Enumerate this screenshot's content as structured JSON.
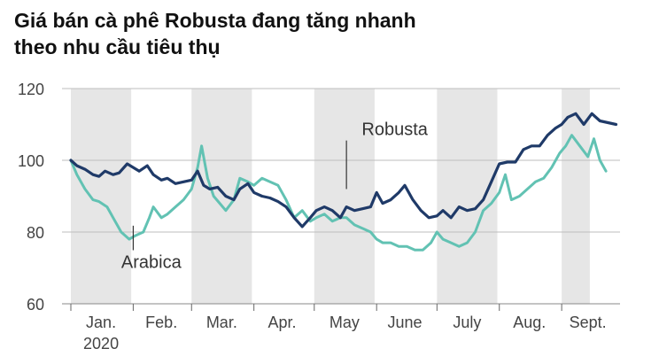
{
  "chart_data": {
    "type": "line",
    "title_lines": [
      "Giá bán cà phê Robusta đang tăng nhanh",
      "theo nhu cầu tiêu thụ"
    ],
    "xlabel": "",
    "ylabel": "",
    "ylim": [
      60,
      120
    ],
    "yticks": [
      60,
      80,
      100,
      120
    ],
    "x_start": "2020-01-01",
    "x_end": "2020-09-30",
    "month_labels": [
      "Jan.",
      "Feb.",
      "Mar.",
      "Apr.",
      "May",
      "June",
      "July",
      "Aug.",
      "Sept."
    ],
    "month_starts": [
      "2020-01-01",
      "2020-02-01",
      "2020-03-01",
      "2020-04-01",
      "2020-05-01",
      "2020-06-01",
      "2020-07-01",
      "2020-08-01",
      "2020-09-01"
    ],
    "month_label_centers": [
      "2020-01-16",
      "2020-02-15",
      "2020-03-16",
      "2020-04-15",
      "2020-05-16",
      "2020-06-15",
      "2020-07-16",
      "2020-08-16",
      "2020-09-14"
    ],
    "year_label": "2020",
    "grid": "y",
    "legend": "inline labels",
    "shaded_bands": [
      [
        "2020-01-01",
        "2020-01-31"
      ],
      [
        "2020-03-01",
        "2020-03-31"
      ],
      [
        "2020-05-01",
        "2020-05-31"
      ],
      [
        "2020-07-01",
        "2020-07-31"
      ],
      [
        "2020-09-01",
        "2020-09-15"
      ]
    ],
    "band_color": "#e6e6e6",
    "series": [
      {
        "name": "Robusta",
        "color": "#1f3a68",
        "label_text": "Robusta",
        "label_anchor": [
          "2020-05-17",
          91
        ],
        "label_pos": [
          "2020-06-10",
          107
        ],
        "points": [
          [
            "2020-01-01",
            100
          ],
          [
            "2020-01-04",
            98.5
          ],
          [
            "2020-01-08",
            97.5
          ],
          [
            "2020-01-12",
            96
          ],
          [
            "2020-01-15",
            95.5
          ],
          [
            "2020-01-18",
            97
          ],
          [
            "2020-01-22",
            96
          ],
          [
            "2020-01-25",
            96.5
          ],
          [
            "2020-01-29",
            99
          ],
          [
            "2020-02-01",
            98
          ],
          [
            "2020-02-04",
            97
          ],
          [
            "2020-02-08",
            98.5
          ],
          [
            "2020-02-11",
            96
          ],
          [
            "2020-02-15",
            94.5
          ],
          [
            "2020-02-18",
            95
          ],
          [
            "2020-02-22",
            93.5
          ],
          [
            "2020-02-26",
            94
          ],
          [
            "2020-03-01",
            94.5
          ],
          [
            "2020-03-04",
            97
          ],
          [
            "2020-03-07",
            93
          ],
          [
            "2020-03-10",
            92
          ],
          [
            "2020-03-14",
            92.5
          ],
          [
            "2020-03-18",
            90
          ],
          [
            "2020-03-22",
            89
          ],
          [
            "2020-03-25",
            92
          ],
          [
            "2020-03-29",
            93.5
          ],
          [
            "2020-04-01",
            91
          ],
          [
            "2020-04-05",
            90
          ],
          [
            "2020-04-09",
            89.5
          ],
          [
            "2020-04-13",
            88.5
          ],
          [
            "2020-04-17",
            87
          ],
          [
            "2020-04-21",
            84
          ],
          [
            "2020-04-25",
            81.5
          ],
          [
            "2020-04-29",
            84
          ],
          [
            "2020-05-02",
            86
          ],
          [
            "2020-05-06",
            87
          ],
          [
            "2020-05-10",
            86
          ],
          [
            "2020-05-14",
            84
          ],
          [
            "2020-05-17",
            87
          ],
          [
            "2020-05-21",
            86
          ],
          [
            "2020-05-25",
            86.5
          ],
          [
            "2020-05-29",
            87
          ],
          [
            "2020-06-01",
            91
          ],
          [
            "2020-06-04",
            88
          ],
          [
            "2020-06-08",
            89
          ],
          [
            "2020-06-12",
            91
          ],
          [
            "2020-06-15",
            93
          ],
          [
            "2020-06-19",
            89
          ],
          [
            "2020-06-23",
            86
          ],
          [
            "2020-06-27",
            84
          ],
          [
            "2020-07-01",
            84.5
          ],
          [
            "2020-07-04",
            86
          ],
          [
            "2020-07-08",
            84
          ],
          [
            "2020-07-12",
            87
          ],
          [
            "2020-07-16",
            86
          ],
          [
            "2020-07-20",
            86.5
          ],
          [
            "2020-07-24",
            89
          ],
          [
            "2020-07-28",
            94
          ],
          [
            "2020-08-01",
            99
          ],
          [
            "2020-08-05",
            99.5
          ],
          [
            "2020-08-09",
            99.5
          ],
          [
            "2020-08-13",
            103
          ],
          [
            "2020-08-17",
            104
          ],
          [
            "2020-08-21",
            104
          ],
          [
            "2020-08-25",
            107
          ],
          [
            "2020-08-29",
            109
          ],
          [
            "2020-09-01",
            110
          ],
          [
            "2020-09-04",
            112
          ],
          [
            "2020-09-08",
            113
          ],
          [
            "2020-09-12",
            110
          ],
          [
            "2020-09-16",
            113
          ],
          [
            "2020-09-20",
            111
          ],
          [
            "2020-09-24",
            110.5
          ],
          [
            "2020-09-28",
            110
          ]
        ]
      },
      {
        "name": "Arabica",
        "color": "#62c2b3",
        "label_text": "Arabica",
        "label_anchor": [
          "2020-02-01",
          83
        ],
        "label_pos": [
          "2020-02-10",
          70
        ],
        "points": [
          [
            "2020-01-01",
            100
          ],
          [
            "2020-01-04",
            96
          ],
          [
            "2020-01-08",
            92
          ],
          [
            "2020-01-12",
            89
          ],
          [
            "2020-01-15",
            88.5
          ],
          [
            "2020-01-19",
            87
          ],
          [
            "2020-01-22",
            84
          ],
          [
            "2020-01-26",
            80
          ],
          [
            "2020-01-30",
            78
          ],
          [
            "2020-02-02",
            79
          ],
          [
            "2020-02-06",
            80
          ],
          [
            "2020-02-09",
            84
          ],
          [
            "2020-02-11",
            87
          ],
          [
            "2020-02-15",
            84
          ],
          [
            "2020-02-18",
            85
          ],
          [
            "2020-02-22",
            87
          ],
          [
            "2020-02-26",
            89
          ],
          [
            "2020-03-01",
            92
          ],
          [
            "2020-03-04",
            98
          ],
          [
            "2020-03-06",
            104
          ],
          [
            "2020-03-09",
            95
          ],
          [
            "2020-03-12",
            90
          ],
          [
            "2020-03-15",
            88
          ],
          [
            "2020-03-18",
            86
          ],
          [
            "2020-03-22",
            89
          ],
          [
            "2020-03-25",
            95
          ],
          [
            "2020-03-29",
            94
          ],
          [
            "2020-04-01",
            93
          ],
          [
            "2020-04-05",
            95
          ],
          [
            "2020-04-09",
            94
          ],
          [
            "2020-04-13",
            93
          ],
          [
            "2020-04-17",
            89
          ],
          [
            "2020-04-21",
            84
          ],
          [
            "2020-04-25",
            86
          ],
          [
            "2020-04-29",
            83
          ],
          [
            "2020-05-02",
            84
          ],
          [
            "2020-05-06",
            85
          ],
          [
            "2020-05-10",
            83
          ],
          [
            "2020-05-14",
            84
          ],
          [
            "2020-05-17",
            84
          ],
          [
            "2020-05-21",
            82
          ],
          [
            "2020-05-25",
            81
          ],
          [
            "2020-05-29",
            80
          ],
          [
            "2020-06-01",
            78
          ],
          [
            "2020-06-04",
            77
          ],
          [
            "2020-06-08",
            77
          ],
          [
            "2020-06-12",
            76
          ],
          [
            "2020-06-16",
            76
          ],
          [
            "2020-06-20",
            75
          ],
          [
            "2020-06-24",
            75
          ],
          [
            "2020-06-28",
            77
          ],
          [
            "2020-07-01",
            80
          ],
          [
            "2020-07-04",
            78
          ],
          [
            "2020-07-08",
            77
          ],
          [
            "2020-07-12",
            76
          ],
          [
            "2020-07-16",
            77
          ],
          [
            "2020-07-20",
            80
          ],
          [
            "2020-07-24",
            86
          ],
          [
            "2020-07-28",
            88
          ],
          [
            "2020-08-01",
            91
          ],
          [
            "2020-08-04",
            96
          ],
          [
            "2020-08-07",
            89
          ],
          [
            "2020-08-11",
            90
          ],
          [
            "2020-08-15",
            92
          ],
          [
            "2020-08-19",
            94
          ],
          [
            "2020-08-23",
            95
          ],
          [
            "2020-08-27",
            98
          ],
          [
            "2020-08-31",
            102
          ],
          [
            "2020-09-03",
            104
          ],
          [
            "2020-09-06",
            107
          ],
          [
            "2020-09-10",
            104
          ],
          [
            "2020-09-14",
            101
          ],
          [
            "2020-09-17",
            106
          ],
          [
            "2020-09-20",
            100
          ],
          [
            "2020-09-23",
            97
          ]
        ]
      }
    ]
  }
}
